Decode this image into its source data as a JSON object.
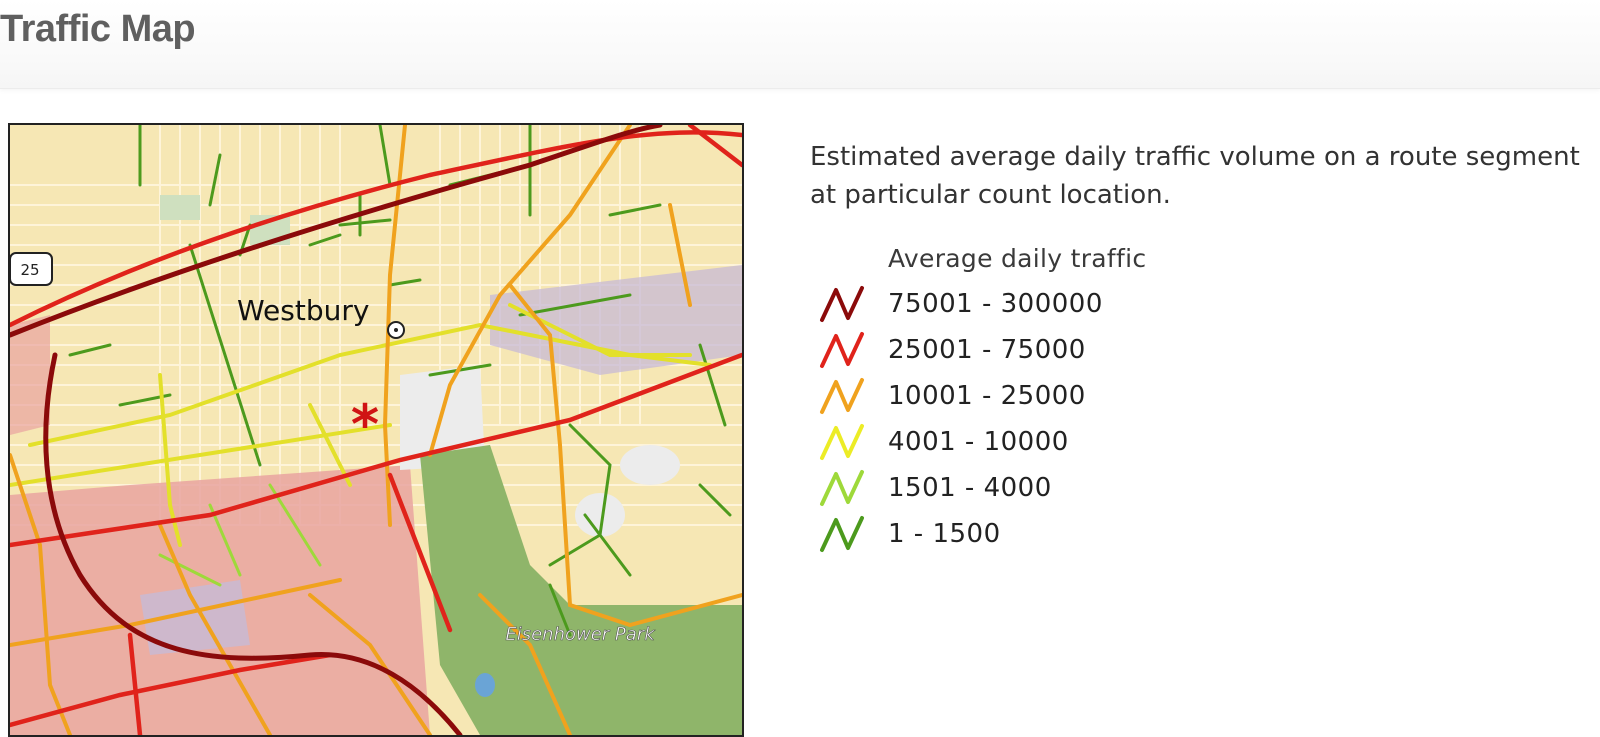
{
  "page": {
    "title": "Traffic Map"
  },
  "map": {
    "place_labels": {
      "town": "Westbury",
      "park": "Eisenhower Park",
      "route_shield": "25"
    },
    "colors": {
      "background": "#f6e7b4",
      "commercial": "#e9a3a0",
      "industrial": "#c7bad6",
      "park": "#8fb56a",
      "open": "#ececec"
    }
  },
  "description": "Estimated average daily traffic volume on a route segment at particular count location.",
  "legend": {
    "title": "Average daily traffic",
    "items": [
      {
        "label": "75001 - 300000",
        "color": "#8b0a0a"
      },
      {
        "label": "25001 - 75000",
        "color": "#e0231b"
      },
      {
        "label": "10001 - 25000",
        "color": "#f0a21e"
      },
      {
        "label": "4001 - 10000",
        "color": "#ecec26"
      },
      {
        "label": "1501 - 4000",
        "color": "#9ed93a"
      },
      {
        "label": "1 - 1500",
        "color": "#4c9a1d"
      }
    ]
  }
}
